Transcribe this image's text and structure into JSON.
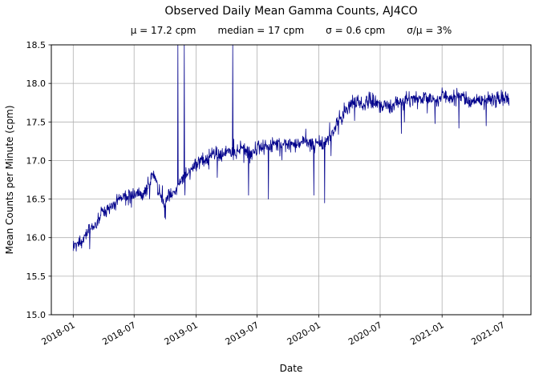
{
  "chart_data": {
    "type": "line",
    "title": "Observed Daily Mean Gamma Counts, AJ4CO",
    "stats": {
      "mu": "μ = 17.2 cpm",
      "median": "median = 17 cpm",
      "sigma": "σ = 0.6 cpm",
      "sigma_over_mu": "σ/μ = 3%"
    },
    "xlabel": "Date",
    "ylabel": "Mean Counts per Minute (cpm)",
    "ylim": [
      15.0,
      18.5
    ],
    "y_ticks": [
      15.0,
      15.5,
      16.0,
      16.5,
      17.0,
      17.5,
      18.0,
      18.5
    ],
    "x_ticks": [
      "2018-01",
      "2018-07",
      "2019-01",
      "2019-07",
      "2020-01",
      "2020-07",
      "2021-01",
      "2021-07"
    ],
    "x_axis_range": [
      "2017-10-28",
      "2021-09-22"
    ],
    "grid": true,
    "line_color": "#00008b",
    "series": [
      {
        "name": "Observed daily mean gamma counts (cpm)",
        "start": "2018-01-01",
        "end": "2021-07-19",
        "noise_cpm": 0.07,
        "anchors": [
          [
            "2018-01-01",
            15.82
          ],
          [
            "2018-01-20",
            15.95
          ],
          [
            "2018-02-10",
            16.05
          ],
          [
            "2018-03-05",
            16.17
          ],
          [
            "2018-03-25",
            16.3
          ],
          [
            "2018-04-20",
            16.38
          ],
          [
            "2018-05-15",
            16.47
          ],
          [
            "2018-06-10",
            16.52
          ],
          [
            "2018-07-05",
            16.56
          ],
          [
            "2018-07-25",
            16.6
          ],
          [
            "2018-08-15",
            16.72
          ],
          [
            "2018-08-28",
            16.85
          ],
          [
            "2018-09-12",
            16.6
          ],
          [
            "2018-09-28",
            16.42
          ],
          [
            "2018-10-12",
            16.5
          ],
          [
            "2018-10-28",
            16.62
          ],
          [
            "2018-11-15",
            16.72
          ],
          [
            "2018-12-05",
            16.85
          ],
          [
            "2018-12-25",
            16.95
          ],
          [
            "2019-01-15",
            17.0
          ],
          [
            "2019-02-10",
            17.02
          ],
          [
            "2019-03-10",
            17.07
          ],
          [
            "2019-04-10",
            17.1
          ],
          [
            "2019-05-10",
            17.16
          ],
          [
            "2019-06-10",
            17.12
          ],
          [
            "2019-07-10",
            17.16
          ],
          [
            "2019-08-10",
            17.18
          ],
          [
            "2019-09-10",
            17.24
          ],
          [
            "2019-10-10",
            17.2
          ],
          [
            "2019-11-10",
            17.25
          ],
          [
            "2019-12-10",
            17.18
          ],
          [
            "2020-01-10",
            17.2
          ],
          [
            "2020-02-05",
            17.32
          ],
          [
            "2020-03-01",
            17.55
          ],
          [
            "2020-03-25",
            17.7
          ],
          [
            "2020-04-15",
            17.75
          ],
          [
            "2020-05-10",
            17.72
          ],
          [
            "2020-06-05",
            17.78
          ],
          [
            "2020-07-01",
            17.74
          ],
          [
            "2020-08-01",
            17.72
          ],
          [
            "2020-09-01",
            17.76
          ],
          [
            "2020-10-01",
            17.75
          ],
          [
            "2020-11-01",
            17.8
          ],
          [
            "2020-12-01",
            17.8
          ],
          [
            "2021-01-01",
            17.84
          ],
          [
            "2021-02-01",
            17.8
          ],
          [
            "2021-03-01",
            17.8
          ],
          [
            "2021-04-01",
            17.76
          ],
          [
            "2021-05-01",
            17.8
          ],
          [
            "2021-06-01",
            17.8
          ],
          [
            "2021-07-01",
            17.8
          ],
          [
            "2021-07-19",
            17.76
          ]
        ],
        "spikes": [
          [
            "2018-11-08",
            18.5
          ],
          [
            "2018-11-27",
            18.5
          ],
          [
            "2019-04-20",
            18.5
          ]
        ],
        "dips": [
          [
            "2018-10-02",
            16.24
          ],
          [
            "2019-03-05",
            16.78
          ],
          [
            "2019-06-06",
            16.55
          ],
          [
            "2019-08-04",
            16.5
          ],
          [
            "2019-12-17",
            16.55
          ],
          [
            "2020-01-18",
            16.45
          ],
          [
            "2020-09-02",
            17.35
          ],
          [
            "2021-02-20",
            17.42
          ],
          [
            "2021-05-12",
            17.45
          ]
        ]
      }
    ]
  }
}
